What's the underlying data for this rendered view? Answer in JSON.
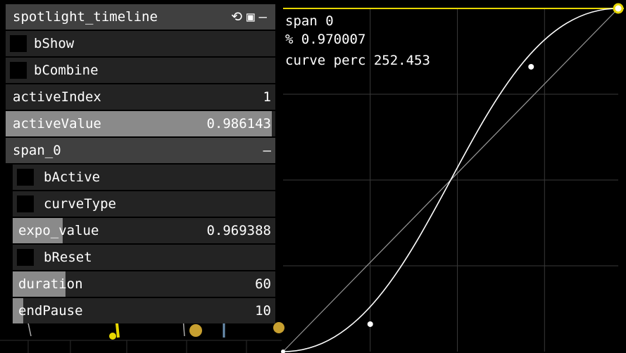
{
  "panel": {
    "title": "spotlight_timeline",
    "header_icons": [
      "reload-icon",
      "save-icon",
      "minimize-icon"
    ],
    "header_icon_glyphs": [
      "⟲",
      "▣",
      "–"
    ],
    "params": [
      {
        "type": "toggle",
        "label": "bShow",
        "checked": false
      },
      {
        "type": "toggle",
        "label": "bCombine",
        "checked": false
      },
      {
        "type": "value",
        "label": "activeIndex",
        "value": "1"
      },
      {
        "type": "slider",
        "label": "activeValue",
        "value": "0.986143",
        "fill": 0.986143
      }
    ],
    "group": {
      "title": "span_0",
      "collapse_glyph": "–",
      "params": [
        {
          "type": "toggle",
          "label": "bActive",
          "checked": false
        },
        {
          "type": "toggle",
          "label": "curveType",
          "checked": false
        },
        {
          "type": "slider",
          "label": "expo_value",
          "value": "0.969388",
          "fill": 0.19
        },
        {
          "type": "toggle",
          "label": "bReset",
          "checked": false
        },
        {
          "type": "slider",
          "label": "duration",
          "value": "60",
          "fill": 0.2
        },
        {
          "type": "slider",
          "label": "endPause",
          "value": "10",
          "fill": 0.04
        }
      ]
    }
  },
  "graph": {
    "span_label": "span 0",
    "percent_label": "% 0.970007",
    "curve_label": "curve perc 252.453",
    "control_points": [
      [
        0.3,
        0.1
      ],
      [
        0.7,
        0.9
      ]
    ],
    "accent_color": "#e8d800",
    "curve_color": "#ffffff",
    "grid_color": "#3a3a3a"
  }
}
